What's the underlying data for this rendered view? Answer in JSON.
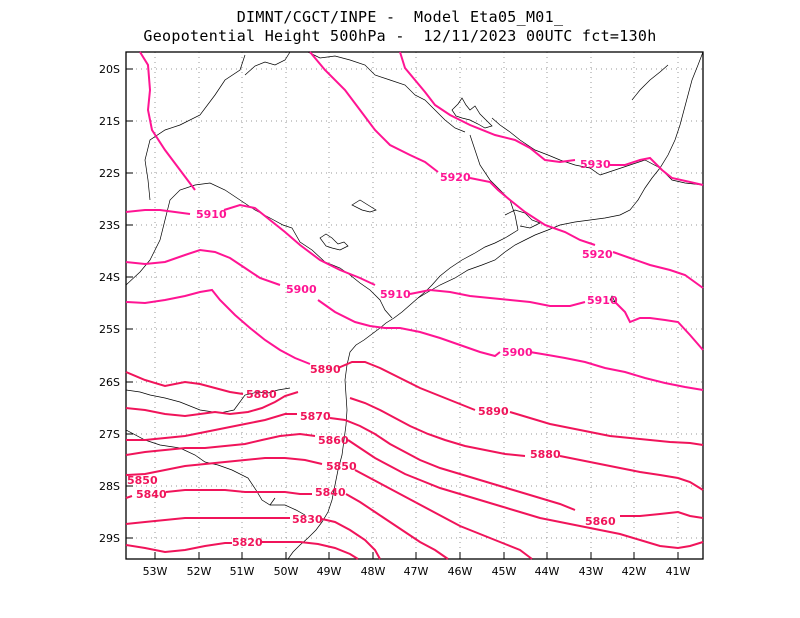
{
  "header": {
    "line1": "DIMNT/CGCT/INPE -  Model Eta05_M01_",
    "line2": "Geopotential Height 500hPa -  12/11/2023 00UTC fct=130h"
  },
  "axes": {
    "lat_labels": [
      "20S",
      "21S",
      "22S",
      "23S",
      "24S",
      "25S",
      "26S",
      "27S",
      "28S",
      "29S"
    ],
    "lon_labels": [
      "53W",
      "52W",
      "51W",
      "50W",
      "49W",
      "48W",
      "47W",
      "46W",
      "45W",
      "44W",
      "43W",
      "42W",
      "41W"
    ]
  },
  "colors": {
    "contour_pink": "#ff1493",
    "contour_red": "#f0145a",
    "coast": "#000000",
    "grid": "#999999"
  },
  "contour_labels": [
    {
      "text": "5930",
      "value": 5930
    },
    {
      "text": "5920",
      "value": 5920
    },
    {
      "text": "5920",
      "value": 5920
    },
    {
      "text": "5910",
      "value": 5910
    },
    {
      "text": "5910",
      "value": 5910
    },
    {
      "text": "5910",
      "value": 5910
    },
    {
      "text": "5900",
      "value": 5900
    },
    {
      "text": "5900",
      "value": 5900
    },
    {
      "text": "5890",
      "value": 5890
    },
    {
      "text": "5890",
      "value": 5890
    },
    {
      "text": "5880",
      "value": 5880
    },
    {
      "text": "5880",
      "value": 5880
    },
    {
      "text": "5870",
      "value": 5870
    },
    {
      "text": "5860",
      "value": 5860
    },
    {
      "text": "5860",
      "value": 5860
    },
    {
      "text": "5850",
      "value": 5850
    },
    {
      "text": "5850",
      "value": 5850
    },
    {
      "text": "5840",
      "value": 5840
    },
    {
      "text": "5840",
      "value": 5840
    },
    {
      "text": "5830",
      "value": 5830
    },
    {
      "text": "5820",
      "value": 5820
    }
  ]
}
